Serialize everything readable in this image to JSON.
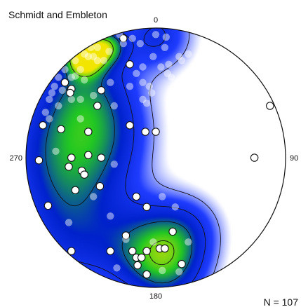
{
  "chart_data": {
    "type": "scatter",
    "subtype": "stereonet-density",
    "title": "Schmidt and Embleton",
    "direction_labels": {
      "north": "0",
      "east": "90",
      "south": "180",
      "west": "270"
    },
    "count_label": "N = 107",
    "n": 107,
    "colors": {
      "low": "#ffffff",
      "mid": "#1f3cff",
      "high": "#0022cc",
      "peak_green": "#22c822",
      "peak_yellow": "#f2e600",
      "outline": "#111111",
      "point_fill": "#ffffff",
      "point_stroke": "#111111"
    },
    "density_peaks": [
      {
        "x": 0.02,
        "y": -0.95,
        "w": 0.6,
        "r": 0.2
      },
      {
        "x": -0.55,
        "y": -0.55,
        "w": 0.7,
        "r": 0.28
      },
      {
        "x": -0.78,
        "y": -0.1,
        "w": 0.6,
        "r": 0.3
      },
      {
        "x": -0.72,
        "y": 0.35,
        "w": 0.45,
        "r": 0.3
      },
      {
        "x": -0.6,
        "y": 0.72,
        "w": 0.4,
        "r": 0.28
      },
      {
        "x": -0.05,
        "y": 0.68,
        "w": 0.7,
        "r": 0.26
      },
      {
        "x": 0.1,
        "y": 0.88,
        "w": 0.55,
        "r": 0.22
      },
      {
        "x": 0.25,
        "y": 0.55,
        "w": 0.4,
        "r": 0.2
      },
      {
        "x": -0.3,
        "y": -0.2,
        "w": 0.35,
        "r": 0.25
      },
      {
        "x": -0.4,
        "y": 0.1,
        "w": 0.25,
        "r": 0.25
      },
      {
        "x": -0.55,
        "y": -0.78,
        "w": 1.2,
        "r": 0.1
      },
      {
        "x": -0.38,
        "y": -0.86,
        "w": 0.8,
        "r": 0.1
      }
    ],
    "points": [
      {
        "x": -0.25,
        "y": -0.92,
        "hidden": false
      },
      {
        "x": -0.2,
        "y": -0.72,
        "hidden": false
      },
      {
        "x": -0.1,
        "y": -0.7,
        "hidden": true
      },
      {
        "x": -0.7,
        "y": -0.58,
        "hidden": false
      },
      {
        "x": -0.62,
        "y": -0.63,
        "hidden": true
      },
      {
        "x": -0.72,
        "y": -0.52,
        "hidden": true
      },
      {
        "x": -0.42,
        "y": -0.52,
        "hidden": false
      },
      {
        "x": -0.48,
        "y": -0.48,
        "hidden": true
      },
      {
        "x": -0.45,
        "y": -0.4,
        "hidden": false
      },
      {
        "x": -0.32,
        "y": -0.4,
        "hidden": true
      },
      {
        "x": 0.88,
        "y": -0.4,
        "hidden": false
      },
      {
        "x": -0.87,
        "y": -0.25,
        "hidden": false
      },
      {
        "x": -0.73,
        "y": -0.22,
        "hidden": false
      },
      {
        "x": -0.52,
        "y": -0.2,
        "hidden": false
      },
      {
        "x": -0.2,
        "y": -0.25,
        "hidden": false
      },
      {
        "x": -0.08,
        "y": -0.2,
        "hidden": false
      },
      {
        "x": 0.0,
        "y": -0.2,
        "hidden": false
      },
      {
        "x": -0.9,
        "y": 0.02,
        "hidden": false
      },
      {
        "x": -0.65,
        "y": 0.0,
        "hidden": false
      },
      {
        "x": -0.52,
        "y": -0.02,
        "hidden": false
      },
      {
        "x": -0.42,
        "y": 0.0,
        "hidden": false
      },
      {
        "x": -0.67,
        "y": 0.07,
        "hidden": false
      },
      {
        "x": -0.57,
        "y": 0.1,
        "hidden": false
      },
      {
        "x": -0.55,
        "y": 0.13,
        "hidden": false
      },
      {
        "x": 0.76,
        "y": 0.0,
        "hidden": false
      },
      {
        "x": -0.62,
        "y": 0.25,
        "hidden": false
      },
      {
        "x": -0.43,
        "y": 0.22,
        "hidden": false
      },
      {
        "x": -0.15,
        "y": 0.3,
        "hidden": false
      },
      {
        "x": -0.07,
        "y": 0.38,
        "hidden": false
      },
      {
        "x": 0.15,
        "y": 0.38,
        "hidden": true
      },
      {
        "x": -0.83,
        "y": 0.37,
        "hidden": false
      },
      {
        "x": 0.13,
        "y": 0.57,
        "hidden": false
      },
      {
        "x": -0.23,
        "y": 0.6,
        "hidden": false
      },
      {
        "x": -0.23,
        "y": 0.63,
        "hidden": true
      },
      {
        "x": -0.35,
        "y": 0.72,
        "hidden": false
      },
      {
        "x": -0.18,
        "y": 0.72,
        "hidden": false
      },
      {
        "x": -0.07,
        "y": 0.72,
        "hidden": false
      },
      {
        "x": 0.03,
        "y": 0.7,
        "hidden": false
      },
      {
        "x": 0.07,
        "y": 0.7,
        "hidden": false
      },
      {
        "x": -0.15,
        "y": 0.77,
        "hidden": false
      },
      {
        "x": -0.11,
        "y": 0.77,
        "hidden": false
      },
      {
        "x": -0.02,
        "y": 0.65,
        "hidden": true
      },
      {
        "x": -0.14,
        "y": 0.83,
        "hidden": false
      },
      {
        "x": 0.2,
        "y": 0.82,
        "hidden": false
      },
      {
        "x": -0.07,
        "y": 0.9,
        "hidden": false
      },
      {
        "x": 0.05,
        "y": 0.87,
        "hidden": true
      },
      {
        "x": -0.65,
        "y": 0.72,
        "hidden": false
      },
      {
        "x": -0.65,
        "y": -0.53,
        "hidden": false
      },
      {
        "x": -0.66,
        "y": -0.5,
        "hidden": false
      },
      {
        "x": -0.48,
        "y": -0.78,
        "hidden": true
      },
      {
        "x": -0.45,
        "y": -0.75,
        "hidden": true
      },
      {
        "x": -0.15,
        "y": -0.65,
        "hidden": true
      },
      {
        "x": 0.04,
        "y": -0.7,
        "hidden": true
      },
      {
        "x": 0.1,
        "y": -0.72,
        "hidden": true
      },
      {
        "x": 0.18,
        "y": -0.78,
        "hidden": true
      },
      {
        "x": 0.2,
        "y": -0.75,
        "hidden": true
      },
      {
        "x": 0.25,
        "y": -0.8,
        "hidden": true
      },
      {
        "x": 0.09,
        "y": -0.65,
        "hidden": true
      },
      {
        "x": 0.12,
        "y": -0.62,
        "hidden": true
      },
      {
        "x": -0.2,
        "y": -0.55,
        "hidden": true
      },
      {
        "x": -0.1,
        "y": -0.58,
        "hidden": true
      },
      {
        "x": -0.05,
        "y": -0.55,
        "hidden": true
      },
      {
        "x": -0.03,
        "y": -0.5,
        "hidden": true
      },
      {
        "x": 0.18,
        "y": -0.48,
        "hidden": true
      },
      {
        "x": 0.2,
        "y": -0.5,
        "hidden": true
      },
      {
        "x": 0.23,
        "y": -0.5,
        "hidden": true
      },
      {
        "x": -0.1,
        "y": -0.45,
        "hidden": true
      },
      {
        "x": -0.07,
        "y": -0.42,
        "hidden": true
      },
      {
        "x": -0.65,
        "y": -0.45,
        "hidden": true
      },
      {
        "x": -0.58,
        "y": -0.45,
        "hidden": true
      },
      {
        "x": -0.55,
        "y": -0.6,
        "hidden": true
      },
      {
        "x": -0.35,
        "y": -0.58,
        "hidden": true
      },
      {
        "x": -0.58,
        "y": -0.3,
        "hidden": true
      },
      {
        "x": -0.77,
        "y": -0.05,
        "hidden": true
      },
      {
        "x": -0.32,
        "y": 0.05,
        "hidden": true
      },
      {
        "x": -0.35,
        "y": 0.45,
        "hidden": true
      },
      {
        "x": -0.67,
        "y": 0.5,
        "hidden": true
      },
      {
        "x": 0.05,
        "y": 0.3,
        "hidden": true
      },
      {
        "x": 0.18,
        "y": 0.88,
        "hidden": true
      },
      {
        "x": -0.85,
        "y": -0.35,
        "hidden": true
      },
      {
        "x": -0.75,
        "y": -0.4,
        "hidden": true
      },
      {
        "x": -0.48,
        "y": 0.3,
        "hidden": true
      },
      {
        "x": -0.3,
        "y": 0.85,
        "hidden": true
      },
      {
        "x": 0.25,
        "y": 0.65,
        "hidden": true
      },
      {
        "x": -0.36,
        "y": -0.82,
        "hidden": true
      },
      {
        "x": -0.52,
        "y": -0.78,
        "hidden": true
      },
      {
        "x": -0.58,
        "y": -0.68,
        "hidden": true
      },
      {
        "x": -0.65,
        "y": -0.62,
        "hidden": true
      },
      {
        "x": -0.4,
        "y": -0.75,
        "hidden": true
      },
      {
        "x": -0.02,
        "y": -0.78,
        "hidden": true
      },
      {
        "x": 0.07,
        "y": -0.85,
        "hidden": true
      },
      {
        "x": -0.18,
        "y": -0.92,
        "hidden": true
      },
      {
        "x": -0.12,
        "y": -0.88,
        "hidden": true
      },
      {
        "x": 0.0,
        "y": -0.95,
        "hidden": true
      },
      {
        "x": 0.08,
        "y": -0.93,
        "hidden": true
      },
      {
        "x": -0.25,
        "y": -0.88,
        "hidden": true
      },
      {
        "x": -0.28,
        "y": -0.95,
        "hidden": true
      },
      {
        "x": -0.45,
        "y": -0.85,
        "hidden": true
      },
      {
        "x": -0.5,
        "y": -0.85,
        "hidden": true
      },
      {
        "x": -0.55,
        "y": -0.8,
        "hidden": true
      },
      {
        "x": -0.62,
        "y": -0.75,
        "hidden": true
      },
      {
        "x": -0.7,
        "y": -0.68,
        "hidden": true
      },
      {
        "x": -0.75,
        "y": -0.62,
        "hidden": true
      },
      {
        "x": -0.78,
        "y": -0.55,
        "hidden": true
      },
      {
        "x": -0.8,
        "y": -0.5,
        "hidden": true
      },
      {
        "x": -0.82,
        "y": -0.45,
        "hidden": true
      },
      {
        "x": -0.82,
        "y": -0.3,
        "hidden": true
      }
    ]
  }
}
